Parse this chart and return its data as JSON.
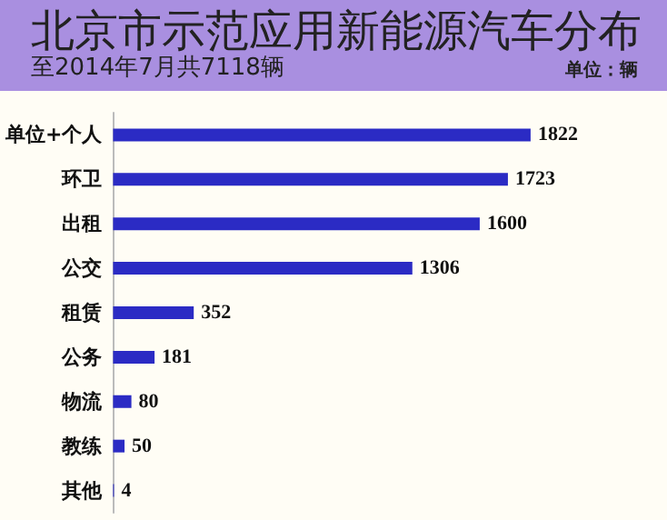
{
  "chart_data": {
    "type": "bar",
    "orientation": "horizontal",
    "title": "北京市示范应用新能源汽车分布",
    "subtitle": "至2014年7月共7118辆",
    "annotations": [
      "单位：辆"
    ],
    "categories": [
      "单位+个人",
      "环卫",
      "出租",
      "公交",
      "租赁",
      "公务",
      "物流",
      "教练",
      "其他"
    ],
    "values": [
      1822,
      1723,
      1600,
      1306,
      352,
      181,
      80,
      50,
      4
    ],
    "color": "#2b2bc4",
    "data_labels": true,
    "grid": false
  }
}
